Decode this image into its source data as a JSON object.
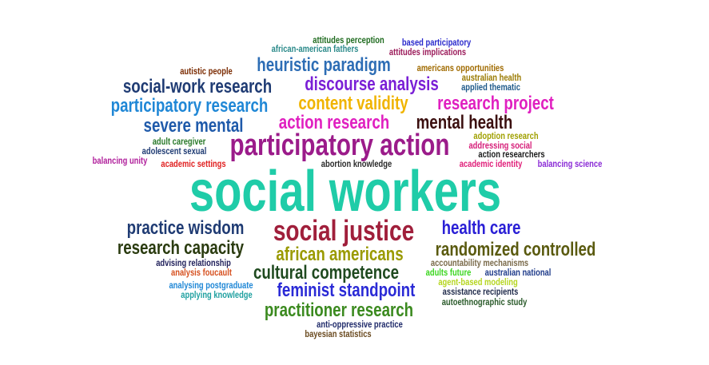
{
  "words": [
    {
      "text": "attitudes perception",
      "color": "#1f6b1f"
    },
    {
      "text": "based participatory",
      "color": "#2a2acc"
    },
    {
      "text": "african-american fathers",
      "color": "#2b8a8a"
    },
    {
      "text": "attitudes implications",
      "color": "#9b1b5a"
    },
    {
      "text": "autistic people",
      "color": "#7a2a00"
    },
    {
      "text": "heuristic paradigm",
      "color": "#2d6db5"
    },
    {
      "text": "americans opportunities",
      "color": "#a06b00"
    },
    {
      "text": "australian health",
      "color": "#9a7a00"
    },
    {
      "text": "social-work research",
      "color": "#1f3b73"
    },
    {
      "text": "discourse analysis",
      "color": "#7a1fd6"
    },
    {
      "text": "applied thematic",
      "color": "#1f5a8a"
    },
    {
      "text": "participatory research",
      "color": "#1f87d6"
    },
    {
      "text": "content validity",
      "color": "#f0b400"
    },
    {
      "text": "research project",
      "color": "#e01fc0"
    },
    {
      "text": "severe mental",
      "color": "#1f5aaa"
    },
    {
      "text": "action research",
      "color": "#e01fc0"
    },
    {
      "text": "mental health",
      "color": "#3b0f0f"
    },
    {
      "text": "adoption research",
      "color": "#a0a000"
    },
    {
      "text": "addressing social",
      "color": "#d6207a"
    },
    {
      "text": "adult caregiver",
      "color": "#2a7a2a"
    },
    {
      "text": "participatory action",
      "color": "#9b1b8a"
    },
    {
      "text": "action researchers",
      "color": "#1a1a1a"
    },
    {
      "text": "adolescent sexual",
      "color": "#1f3b73"
    },
    {
      "text": "balancing unity",
      "color": "#b01f9b"
    },
    {
      "text": "academic settings",
      "color": "#e01f1f"
    },
    {
      "text": "abortion knowledge",
      "color": "#2a2a2a"
    },
    {
      "text": "academic identity",
      "color": "#e0207a"
    },
    {
      "text": "balancing science",
      "color": "#8a2ad6"
    },
    {
      "text": "social workers",
      "color": "#1fcca8"
    },
    {
      "text": "practice wisdom",
      "color": "#1f3b73"
    },
    {
      "text": "social justice",
      "color": "#a01f3b"
    },
    {
      "text": "health care",
      "color": "#2a1fd6"
    },
    {
      "text": "research capacity",
      "color": "#2a3b0f"
    },
    {
      "text": "african americans",
      "color": "#9a9a00"
    },
    {
      "text": "randomized controlled",
      "color": "#5a5a0f"
    },
    {
      "text": "advising relationship",
      "color": "#1f1f5a"
    },
    {
      "text": "accountability mechanisms",
      "color": "#7a6a4a"
    },
    {
      "text": "analysis foucault",
      "color": "#d6501f"
    },
    {
      "text": "cultural competence",
      "color": "#1f4a1f"
    },
    {
      "text": "adults future",
      "color": "#3bd61f"
    },
    {
      "text": "australian national",
      "color": "#1f3b8a"
    },
    {
      "text": "analysing postgraduate",
      "color": "#1f87d6"
    },
    {
      "text": "feminist standpoint",
      "color": "#2a2ad6"
    },
    {
      "text": "agent-based modeling",
      "color": "#b5d61f"
    },
    {
      "text": "applying knowledge",
      "color": "#1fa0a0"
    },
    {
      "text": "assistance recipients",
      "color": "#1f2a4a"
    },
    {
      "text": "autoethnographic study",
      "color": "#2a5a2a"
    },
    {
      "text": "practitioner research",
      "color": "#3b8a1f"
    },
    {
      "text": "anti-oppressive practice",
      "color": "#1f2a6a"
    },
    {
      "text": "bayesian statistics",
      "color": "#6a4a1f"
    }
  ]
}
